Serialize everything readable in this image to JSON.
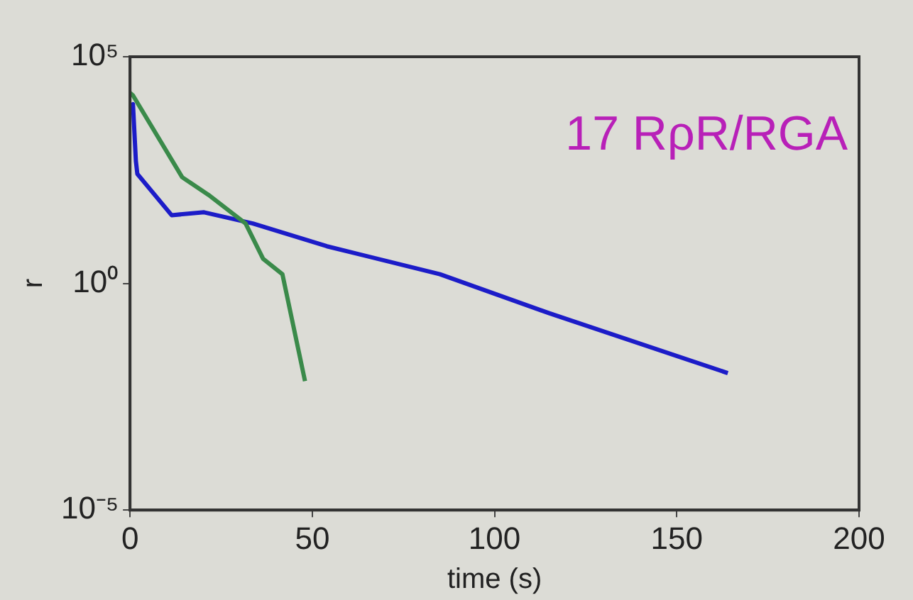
{
  "chart_data": {
    "type": "line",
    "xlabel": "time (s)",
    "ylabel": "r",
    "log": "y",
    "xlim": [
      0,
      200
    ],
    "xticks": [
      0,
      50,
      100,
      150,
      200
    ],
    "ylim": [
      1e-05,
      100000
    ],
    "yticks": [
      {
        "value": 100000,
        "label": "10⁵"
      },
      {
        "value": 1,
        "label": "10⁰"
      },
      {
        "value": 1e-05,
        "label": "10⁻⁵"
      }
    ],
    "grid": false,
    "legend": false,
    "marker": "none",
    "line_style": "solid",
    "annotations": [
      "17 RρR/RGA"
    ],
    "series": [
      {
        "color": "#3a8a4a",
        "x": [
          0,
          0.8,
          14.3,
          21.5,
          31.7,
          36.5,
          41.8,
          48
        ],
        "values": [
          16000,
          14000,
          220,
          90,
          21,
          3.5,
          1.6,
          0.007
        ]
      },
      {
        "color": "#1c1cc8",
        "x": [
          0,
          0.8,
          1.6,
          2,
          11.4,
          20.3,
          33.7,
          54,
          85,
          115,
          164
        ],
        "values": [
          8000,
          9000,
          500,
          260,
          32,
          37,
          21,
          6.6,
          1.6,
          0.22,
          0.0105
        ]
      }
    ]
  }
}
